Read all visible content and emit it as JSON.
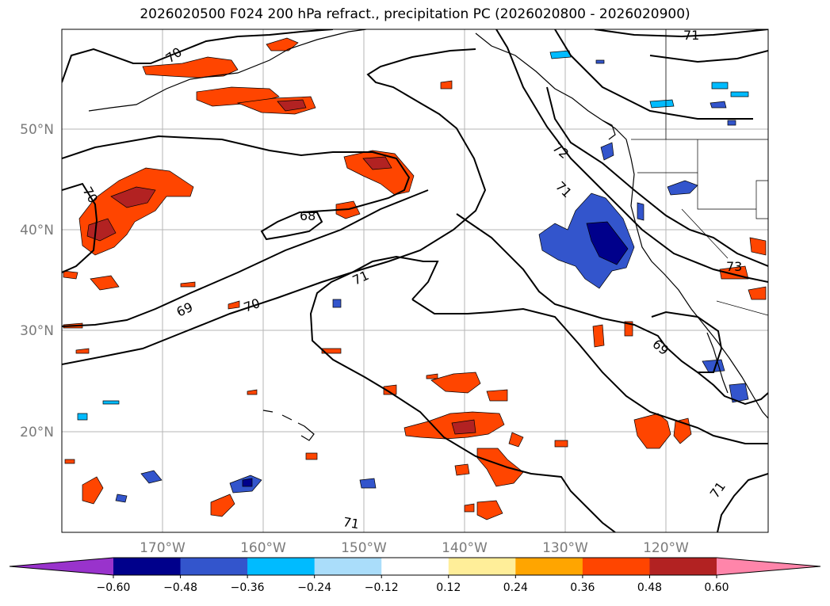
{
  "title": "2026020500 F024 200 hPa refract., precipitation PC (2026020800 - 2026020900)",
  "lat_ticks": [
    "50°N",
    "40°N",
    "30°N",
    "20°N"
  ],
  "lon_ticks": [
    "170°W",
    "160°W",
    "150°W",
    "140°W",
    "130°W",
    "120°W"
  ],
  "contour_labels": [
    "70",
    "70",
    "68",
    "69",
    "70",
    "71",
    "72",
    "71",
    "71",
    "73",
    "69",
    "71",
    "71"
  ],
  "colorbar": {
    "tick_labels": [
      "−0.60",
      "−0.48",
      "−0.36",
      "−0.24",
      "−0.12",
      "0.12",
      "0.24",
      "0.36",
      "0.48",
      "0.60"
    ],
    "colors": [
      "#9933cc",
      "#00008b",
      "#3355cc",
      "#00bbff",
      "#aaddfa",
      "#ffffff",
      "#ffee99",
      "#ffa500",
      "#ff4500",
      "#b22222",
      "#ff85aa"
    ]
  }
}
